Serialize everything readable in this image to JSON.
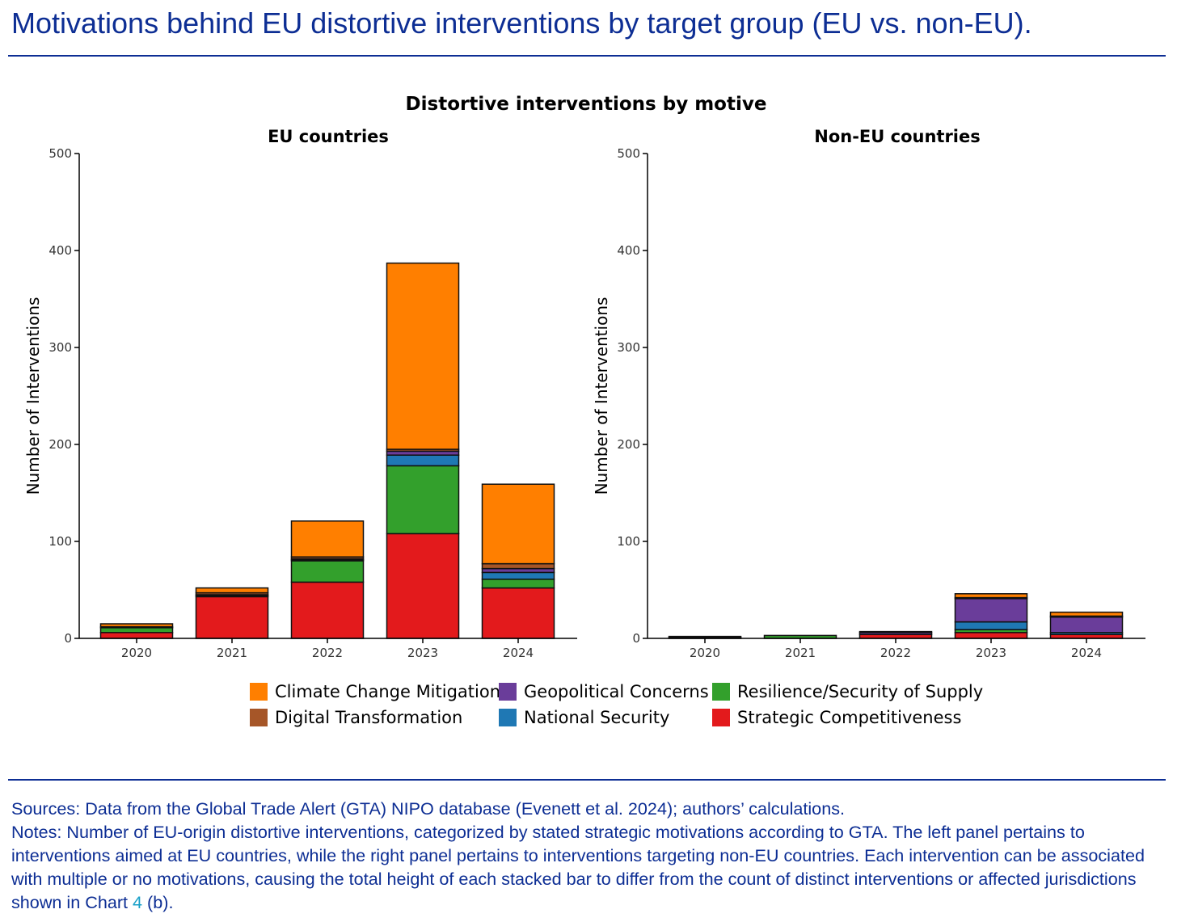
{
  "page": {
    "title": "Motivations behind EU distortive interventions by target group (EU vs. non-EU)."
  },
  "footer": {
    "sources": "Sources: Data from the Global Trade Alert (GTA) NIPO database (Evenett et al. 2024); authors’ calculations.",
    "notes_text": "Notes: Number of EU-origin distortive interventions, categorized by stated strategic motivations according to GTA. The left panel pertains to interventions aimed at EU countries, while the right panel pertains to interventions targeting non-EU countries. Each intervention can be associated with multiple or no motivations, causing the total height of each stacked bar to differ from the count of distinct interventions or affected jurisdictions shown in Chart",
    "notes_chart_ref": "4",
    "notes_end": " (b)."
  },
  "colors": {
    "title_blue": "#0d2e94",
    "link_cyan": "#19a0c8"
  },
  "chart_data": {
    "type": "bar",
    "stacked": true,
    "title": "Distortive interventions by motive",
    "ylabel": "Number of Interventions",
    "ylim": [
      0,
      500
    ],
    "yticks": [
      0,
      100,
      200,
      300,
      400,
      500
    ],
    "categories": [
      "2020",
      "2021",
      "2022",
      "2023",
      "2024"
    ],
    "series_order": [
      "Strategic Competitiveness",
      "Resilience/Security of Supply",
      "National Security",
      "Geopolitical Concerns",
      "Digital Transformation",
      "Climate Change Mitigation"
    ],
    "legend": [
      {
        "name": "Climate Change Mitigation",
        "color": "#ff7f00"
      },
      {
        "name": "Geopolitical Concerns",
        "color": "#6a3d9a"
      },
      {
        "name": "Resilience/Security of Supply",
        "color": "#33a02c"
      },
      {
        "name": "Digital Transformation",
        "color": "#a65628"
      },
      {
        "name": "National Security",
        "color": "#1f78b4"
      },
      {
        "name": "Strategic Competitiveness",
        "color": "#e31a1c"
      }
    ],
    "panels": [
      {
        "title": "EU countries",
        "series": [
          {
            "name": "Strategic Competitiveness",
            "values": [
              6,
              43,
              58,
              108,
              52
            ]
          },
          {
            "name": "Resilience/Security of Supply",
            "values": [
              5,
              1,
              22,
              70,
              9
            ]
          },
          {
            "name": "National Security",
            "values": [
              0,
              0,
              1,
              11,
              7
            ]
          },
          {
            "name": "Geopolitical Concerns",
            "values": [
              0,
              1,
              1,
              4,
              4
            ]
          },
          {
            "name": "Digital Transformation",
            "values": [
              1,
              2,
              2,
              2,
              5
            ]
          },
          {
            "name": "Climate Change Mitigation",
            "values": [
              3,
              5,
              37,
              192,
              82
            ]
          }
        ]
      },
      {
        "title": "Non-EU countries",
        "series": [
          {
            "name": "Strategic Competitiveness",
            "values": [
              0,
              0,
              4,
              6,
              4
            ]
          },
          {
            "name": "Resilience/Security of Supply",
            "values": [
              1,
              3,
              0,
              3,
              0
            ]
          },
          {
            "name": "National Security",
            "values": [
              0,
              0,
              0,
              8,
              2
            ]
          },
          {
            "name": "Geopolitical Concerns",
            "values": [
              0,
              0,
              2,
              24,
              16
            ]
          },
          {
            "name": "Digital Transformation",
            "values": [
              0,
              0,
              1,
              1,
              1
            ]
          },
          {
            "name": "Climate Change Mitigation",
            "values": [
              1,
              0,
              0,
              4,
              4
            ]
          }
        ]
      }
    ]
  }
}
